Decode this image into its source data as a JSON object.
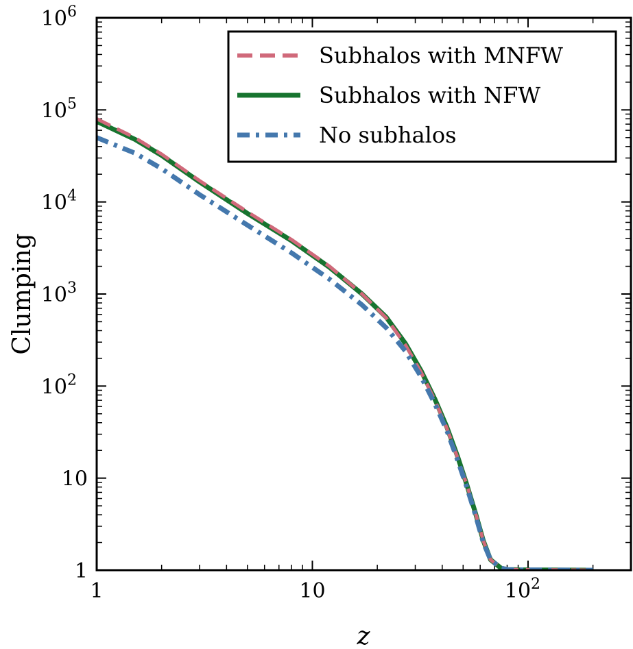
{
  "chart_data": {
    "type": "line",
    "xscale": "log",
    "yscale": "log",
    "xlim": [
      1,
      300
    ],
    "ylim": [
      1,
      1000000
    ],
    "xlabel": "z",
    "ylabel": "Clumping",
    "x_ticks": [
      {
        "value": 1,
        "base": "1",
        "exp": ""
      },
      {
        "value": 10,
        "base": "10",
        "exp": ""
      },
      {
        "value": 100,
        "base": "10",
        "exp": "2"
      }
    ],
    "y_ticks": [
      {
        "value": 1,
        "base": "1",
        "exp": ""
      },
      {
        "value": 10,
        "base": "10",
        "exp": ""
      },
      {
        "value": 100,
        "base": "10",
        "exp": "2"
      },
      {
        "value": 1000,
        "base": "10",
        "exp": "3"
      },
      {
        "value": 10000,
        "base": "10",
        "exp": "4"
      },
      {
        "value": 100000,
        "base": "10",
        "exp": "5"
      },
      {
        "value": 1000000,
        "base": "10",
        "exp": "6"
      }
    ],
    "grid": false,
    "legend_position": "top-right",
    "series": [
      {
        "name": "Subhalos with MNFW",
        "color": "#d0697a",
        "style": "dashed",
        "x": [
          1,
          1.5,
          2,
          3,
          5,
          8,
          12,
          17,
          22,
          27,
          32,
          37,
          42,
          47,
          52,
          57,
          62,
          67,
          75,
          80,
          90,
          200
        ],
        "y": [
          80000,
          50000,
          33000,
          17000,
          7800,
          3900,
          2000,
          1000,
          550,
          280,
          140,
          70,
          35,
          17,
          8.5,
          4.2,
          2.1,
          1.3,
          1.05,
          1.02,
          1.01,
          1.0
        ]
      },
      {
        "name": "Subhalos with NFW",
        "color": "#17742f",
        "style": "solid",
        "x": [
          1,
          1.5,
          2,
          3,
          5,
          8,
          12,
          17,
          22,
          27,
          32,
          37,
          42,
          47,
          52,
          57,
          62,
          67,
          75,
          80,
          90,
          200
        ],
        "y": [
          75000,
          48000,
          32000,
          16500,
          7500,
          3800,
          1950,
          1000,
          560,
          290,
          145,
          72,
          36,
          17.5,
          8.5,
          4.2,
          2.1,
          1.3,
          1.05,
          1.02,
          1.01,
          1.0
        ]
      },
      {
        "name": "No subhalos",
        "color": "#4478ad",
        "style": "dashdot",
        "x": [
          1,
          1.5,
          2,
          3,
          5,
          8,
          12,
          17,
          22,
          27,
          32,
          37,
          42,
          47,
          52,
          57,
          62,
          67,
          75,
          80,
          90,
          200
        ],
        "y": [
          50000,
          34000,
          23000,
          12000,
          5600,
          2800,
          1450,
          760,
          430,
          240,
          125,
          64,
          33,
          16,
          8,
          4,
          2,
          1.3,
          1.05,
          1.02,
          1.01,
          1.0
        ]
      }
    ]
  }
}
